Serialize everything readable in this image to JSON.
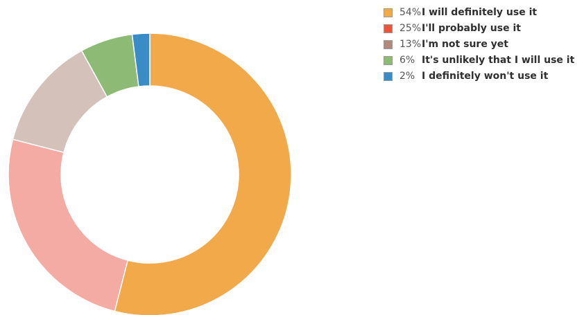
{
  "chart_data": {
    "type": "pie",
    "variant": "donut",
    "values": [
      54,
      25,
      13,
      6,
      2
    ],
    "percent_labels": [
      "54%",
      "25%",
      "13%",
      "6%",
      "2%"
    ],
    "labels": [
      "I will definitely use it",
      "I'll probably use it",
      "I'm not sure yet",
      "It's unlikely that I will use it",
      "I definitely won't use it"
    ],
    "legend_colors": [
      "#f2a94a",
      "#e8553e",
      "#b0897e",
      "#8dbb76",
      "#3a8cc6"
    ],
    "slice_colors": [
      "#f2a94a",
      "#f4aba4",
      "#d4c1ba",
      "#8dbb76",
      "#3a8cc6"
    ],
    "legend_position": "top-right"
  }
}
